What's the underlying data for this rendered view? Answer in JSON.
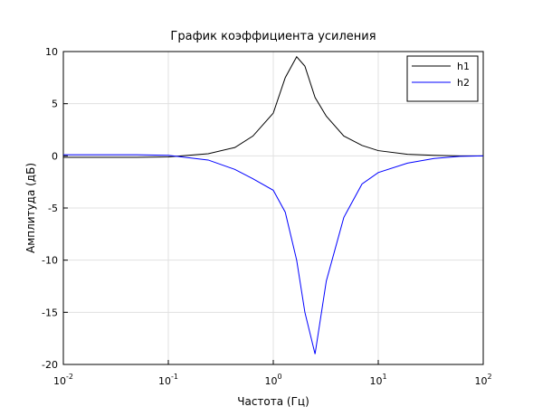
{
  "chart_data": {
    "type": "line",
    "title": "График коэффициента усиления",
    "x_label": "Частота (Гц)",
    "y_label": "Амплитуда (дБ)",
    "log_x": true,
    "grid": true,
    "legend_position": "upper-right",
    "xlim": [
      0.01,
      100
    ],
    "ylim": [
      -20,
      10
    ],
    "xticks": [
      {
        "value": 0.01,
        "label": "10",
        "exponent": "-2"
      },
      {
        "value": 0.1,
        "label": "10",
        "exponent": "-1"
      },
      {
        "value": 1,
        "label": "10",
        "exponent": "0"
      },
      {
        "value": 10,
        "label": "10",
        "exponent": "1"
      },
      {
        "value": 100,
        "label": "10",
        "exponent": "2"
      }
    ],
    "yticks": [
      -20,
      -15,
      -10,
      -5,
      0,
      5,
      10
    ],
    "x": [
      0.01,
      0.05,
      0.1,
      0.24,
      0.43,
      0.64,
      1,
      1.3,
      1.67,
      2,
      2.5,
      3.2,
      4.7,
      7,
      10,
      19,
      34,
      60,
      100
    ],
    "series": [
      {
        "name": "h1",
        "color": "#000000",
        "values": [
          -0.15,
          -0.15,
          -0.1,
          0.2,
          0.8,
          1.9,
          4.1,
          7.5,
          9.5,
          8.6,
          5.6,
          3.8,
          1.9,
          1.0,
          0.5,
          0.15,
          0.05,
          0,
          0
        ]
      },
      {
        "name": "h2",
        "color": "#0000ff",
        "values": [
          0.1,
          0.1,
          0.05,
          -0.4,
          -1.3,
          -2.2,
          -3.3,
          -5.4,
          -10,
          -15,
          -19,
          -12,
          -5.9,
          -2.7,
          -1.6,
          -0.7,
          -0.25,
          -0.05,
          0
        ]
      }
    ]
  }
}
